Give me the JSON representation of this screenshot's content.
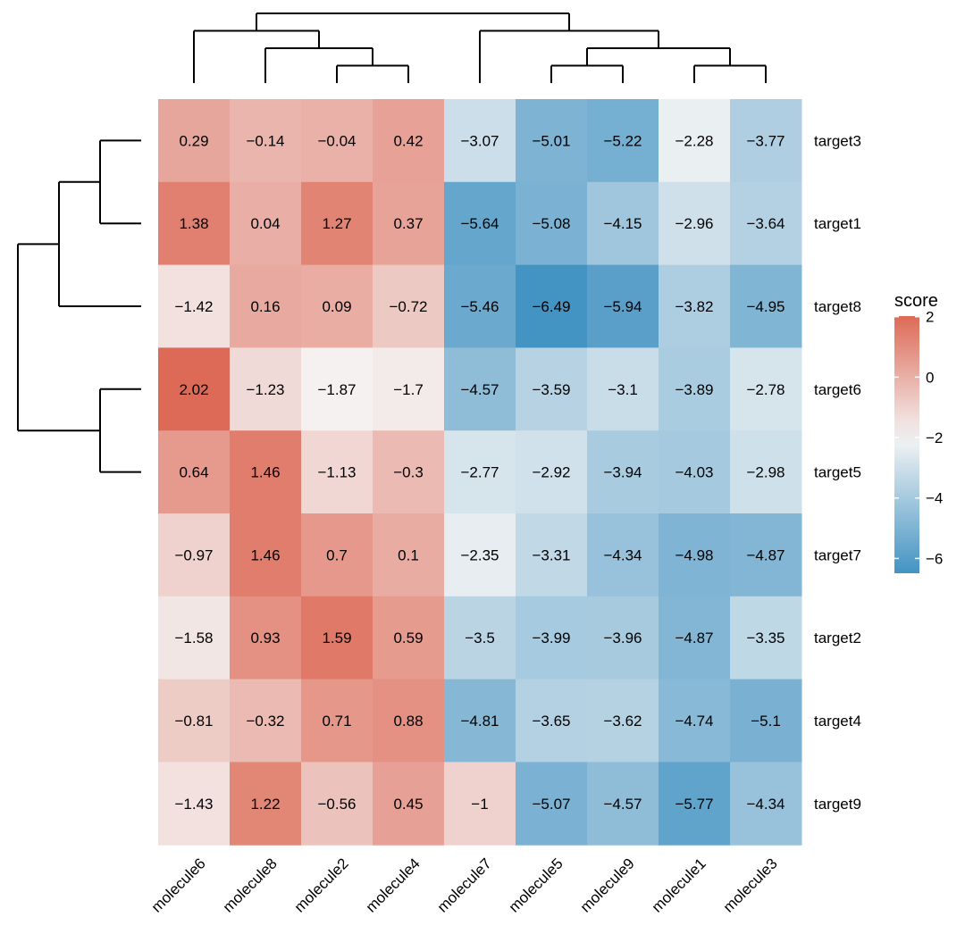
{
  "chart_data": {
    "type": "heatmap",
    "x_labels": [
      "molecule6",
      "molecule8",
      "molecule2",
      "molecule4",
      "molecule7",
      "molecule5",
      "molecule9",
      "molecule1",
      "molecule3"
    ],
    "y_labels": [
      "target3",
      "target1",
      "target8",
      "target6",
      "target5",
      "target7",
      "target2",
      "target4",
      "target9"
    ],
    "values": [
      [
        0.29,
        -0.14,
        -0.04,
        0.42,
        -3.07,
        -5.01,
        -5.22,
        -2.28,
        -3.77
      ],
      [
        1.38,
        0.04,
        1.27,
        0.37,
        -5.64,
        -5.08,
        -4.15,
        -2.96,
        -3.64
      ],
      [
        -1.42,
        0.16,
        0.09,
        -0.72,
        -5.46,
        -6.49,
        -5.94,
        -3.82,
        -4.95
      ],
      [
        2.02,
        -1.23,
        -1.87,
        -1.7,
        -4.57,
        -3.59,
        -3.1,
        -3.89,
        -2.78
      ],
      [
        0.64,
        1.46,
        -1.13,
        -0.3,
        -2.77,
        -2.92,
        -3.94,
        -4.03,
        -2.98
      ],
      [
        -0.97,
        1.46,
        0.7,
        0.1,
        -2.35,
        -3.31,
        -4.34,
        -4.98,
        -4.87
      ],
      [
        -1.58,
        0.93,
        1.59,
        0.59,
        -3.5,
        -3.99,
        -3.96,
        -4.87,
        -3.35
      ],
      [
        -0.81,
        -0.32,
        0.71,
        0.88,
        -4.81,
        -3.65,
        -3.62,
        -4.74,
        -5.1
      ],
      [
        -1.43,
        1.22,
        -0.56,
        0.45,
        -1,
        -5.07,
        -4.57,
        -5.77,
        -4.34
      ]
    ],
    "cell_labels": [
      [
        "0.29",
        "−0.14",
        "−0.04",
        "0.42",
        "−3.07",
        "−5.01",
        "−5.22",
        "−2.28",
        "−3.77"
      ],
      [
        "1.38",
        "0.04",
        "1.27",
        "0.37",
        "−5.64",
        "−5.08",
        "−4.15",
        "−2.96",
        "−3.64"
      ],
      [
        "−1.42",
        "0.16",
        "0.09",
        "−0.72",
        "−5.46",
        "−6.49",
        "−5.94",
        "−3.82",
        "−4.95"
      ],
      [
        "2.02",
        "−1.23",
        "−1.87",
        "−1.7",
        "−4.57",
        "−3.59",
        "−3.1",
        "−3.89",
        "−2.78"
      ],
      [
        "0.64",
        "1.46",
        "−1.13",
        "−0.3",
        "−2.77",
        "−2.92",
        "−3.94",
        "−4.03",
        "−2.98"
      ],
      [
        "−0.97",
        "1.46",
        "0.7",
        "0.1",
        "−2.35",
        "−3.31",
        "−4.34",
        "−4.98",
        "−4.87"
      ],
      [
        "−1.58",
        "0.93",
        "1.59",
        "0.59",
        "−3.5",
        "−3.99",
        "−3.96",
        "−4.87",
        "−3.35"
      ],
      [
        "−0.81",
        "−0.32",
        "0.71",
        "0.88",
        "−4.81",
        "−3.65",
        "−3.62",
        "−4.74",
        "−5.1"
      ],
      [
        "−1.43",
        "1.22",
        "−0.56",
        "0.45",
        "−1",
        "−5.07",
        "−4.57",
        "−5.77",
        "−4.34"
      ]
    ],
    "legend": {
      "title": "score",
      "ticks": [
        2,
        0,
        -2,
        -4,
        -6
      ],
      "tick_labels": [
        "2",
        "0",
        "−2",
        "−4",
        "−6"
      ],
      "range": [
        -6.49,
        2.02
      ],
      "placement": "right"
    },
    "color_scale": {
      "low": "#4393c3",
      "mid": "#f5f5f5",
      "high": "#dd6a57",
      "midpoint": -2
    },
    "column_dendrogram": "((molecule6,(molecule8,(molecule2,molecule4))),(molecule7,((molecule5,molecule9),(molecule1,molecule3))))",
    "row_dendrogram": "(((target3,target1),target8),(target6,target5)),((target7,target2),target4),target9)"
  }
}
